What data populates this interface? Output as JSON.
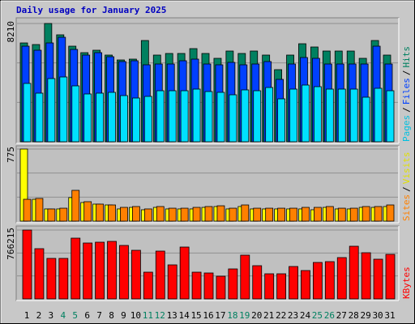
{
  "title": "Daily usage for January 2025",
  "legend_separator": "/",
  "chart_data": [
    {
      "type": "bar",
      "ylim": [
        0,
        8210
      ],
      "yticks": [
        8210
      ],
      "series": [
        {
          "name": "Hits",
          "color": "#008060",
          "values": [
            6860,
            6748,
            8210,
            7423,
            6635,
            6185,
            6354,
            6017,
            5679,
            5736,
            7029,
            6017,
            6129,
            6129,
            6466,
            6129,
            5792,
            6298,
            6129,
            6298,
            6017,
            5005,
            6017,
            6804,
            6579,
            6298,
            6298,
            6298,
            5792,
            7029,
            6017
          ]
        },
        {
          "name": "Files",
          "color": "#0040ff",
          "values": [
            6635,
            6354,
            6860,
            7254,
            6410,
            6017,
            6185,
            5904,
            5567,
            5623,
            5342,
            5398,
            5398,
            5623,
            5736,
            5398,
            5342,
            5511,
            5342,
            5398,
            5567,
            4330,
            5398,
            5848,
            5792,
            5398,
            5398,
            5398,
            5398,
            6635,
            5398
          ]
        },
        {
          "name": "Pages",
          "color": "#00e0ff",
          "values": [
            4049,
            3374,
            4386,
            4498,
            3880,
            3318,
            3374,
            3430,
            3205,
            3036,
            3149,
            3542,
            3542,
            3542,
            3655,
            3486,
            3430,
            3261,
            3599,
            3542,
            3767,
            2980,
            3655,
            3936,
            3824,
            3655,
            3655,
            3655,
            3093,
            3711,
            3542
          ]
        }
      ]
    },
    {
      "type": "bar",
      "ylim": [
        0,
        775
      ],
      "yticks": [
        775
      ],
      "series": [
        {
          "name": "Visits",
          "color": "#ffff00",
          "values": [
            775,
            235,
            131,
            131,
            253,
            200,
            183,
            174,
            131,
            148,
            122,
            148,
            131,
            131,
            131,
            148,
            157,
            131,
            157,
            131,
            131,
            131,
            131,
            131,
            122,
            148,
            131,
            131,
            148,
            148,
            157
          ]
        },
        {
          "name": "Sites",
          "color": "#ff8000",
          "values": [
            235,
            244,
            131,
            139,
            331,
            209,
            183,
            174,
            148,
            157,
            131,
            157,
            139,
            139,
            148,
            157,
            165,
            139,
            174,
            139,
            139,
            139,
            139,
            148,
            148,
            157,
            139,
            139,
            157,
            157,
            174
          ]
        }
      ]
    },
    {
      "type": "bar",
      "ylim": [
        0,
        766215
      ],
      "yticks": [
        766215
      ],
      "categories": [
        "1",
        "2",
        "3",
        "4",
        "5",
        "6",
        "7",
        "8",
        "9",
        "10",
        "11",
        "12",
        "13",
        "14",
        "15",
        "16",
        "17",
        "18",
        "19",
        "20",
        "21",
        "22",
        "23",
        "24",
        "25",
        "26",
        "27",
        "28",
        "29",
        "30",
        "31"
      ],
      "category_colors": [
        "#000000",
        "#000000",
        "#000000",
        "#008060",
        "#008060",
        "#000000",
        "#000000",
        "#000000",
        "#000000",
        "#000000",
        "#008060",
        "#008060",
        "#000000",
        "#000000",
        "#000000",
        "#000000",
        "#000000",
        "#008060",
        "#008060",
        "#000000",
        "#000000",
        "#000000",
        "#000000",
        "#000000",
        "#008060",
        "#008060",
        "#000000",
        "#000000",
        "#000000",
        "#000000",
        "#000000"
      ],
      "series": [
        {
          "name": "KBytes",
          "color": "#ff0000",
          "values": [
            766215,
            558887,
            450715,
            450715,
            676073,
            621987,
            631001,
            640015,
            594944,
            540858,
            297472,
            531844,
            378601,
            576915,
            297472,
            288458,
            252400,
            333529,
            486772,
            369586,
            279443,
            279443,
            360572,
            315500,
            405644,
            414658,
            459729,
            585930,
            513815,
            441701,
            495787
          ]
        }
      ]
    }
  ]
}
